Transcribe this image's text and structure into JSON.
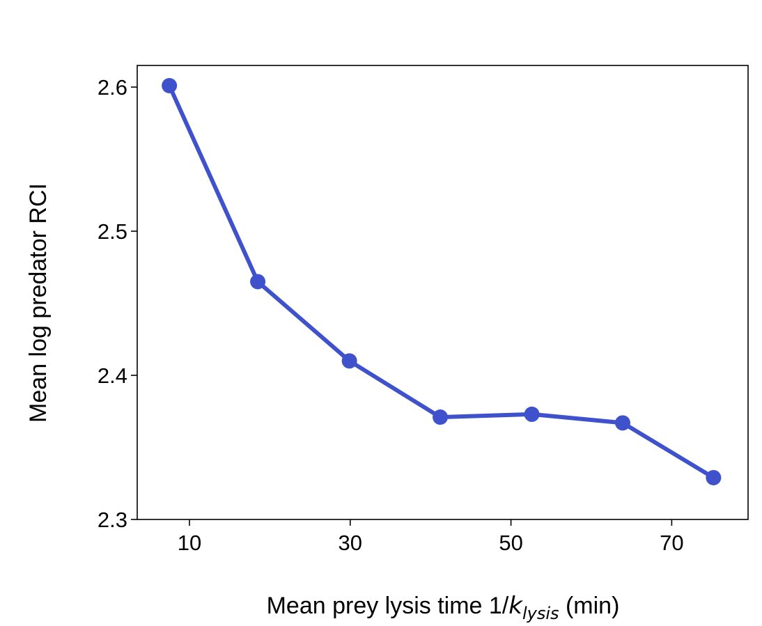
{
  "chart_data": {
    "type": "line",
    "x": [
      7.5,
      18.5,
      29.9,
      41.2,
      52.6,
      63.9,
      75.2
    ],
    "series": [
      {
        "values": [
          2.601,
          2.465,
          2.41,
          2.371,
          2.373,
          2.367,
          2.329
        ],
        "color": "#3f52cc"
      }
    ],
    "xlabel": {
      "prefix": "Mean prey lysis time 1/",
      "symbol": "k",
      "subscript": "lysis",
      "suffix": " (min)"
    },
    "ylabel": "Mean log predator RCI",
    "xlim": [
      3.5,
      79.5
    ],
    "ylim": [
      2.3,
      2.615
    ],
    "xticks": [
      10,
      30,
      50,
      70
    ],
    "xtick_labels": [
      "10",
      "30",
      "50",
      "70"
    ],
    "yticks": [
      2.3,
      2.4,
      2.5,
      2.6
    ],
    "ytick_labels": [
      "2.3",
      "2.4",
      "2.5",
      "2.6"
    ],
    "grid": false,
    "legend": "none"
  }
}
